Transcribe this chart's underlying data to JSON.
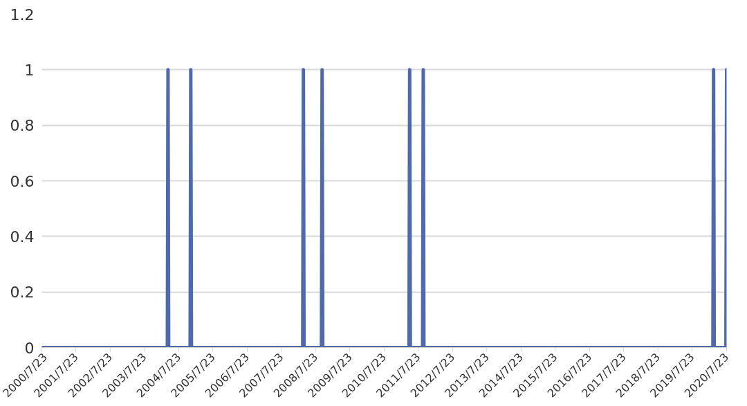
{
  "chart_data": {
    "type": "line",
    "x": [
      "2000-07-23",
      "2004-03-23",
      "2004-03-30",
      "2004-04-06",
      "2004-11-21",
      "2004-11-28",
      "2004-12-05",
      "2008-03-06",
      "2008-03-13",
      "2008-03-20",
      "2008-09-22",
      "2008-09-29",
      "2008-10-06",
      "2011-04-14",
      "2011-04-21",
      "2011-04-28",
      "2011-09-06",
      "2011-09-13",
      "2011-09-20",
      "2020-02-28",
      "2020-03-06",
      "2020-03-13",
      "2020-07-16",
      "2020-07-23"
    ],
    "series": [
      {
        "color": "#4e6aad",
        "values": [
          0,
          0,
          1,
          0,
          0,
          1,
          0,
          0,
          1,
          0,
          0,
          1,
          0,
          0,
          1,
          0,
          0,
          1,
          0,
          0,
          1,
          0,
          0,
          1
        ]
      }
    ],
    "xlim": [
      "2000-07-23",
      "2020-07-23"
    ],
    "xticks": [
      {
        "value": "2000-07-23",
        "label": "2000/7/23"
      },
      {
        "value": "2001-07-23",
        "label": "2001/7/23"
      },
      {
        "value": "2002-07-23",
        "label": "2002/7/23"
      },
      {
        "value": "2003-07-23",
        "label": "2003/7/23"
      },
      {
        "value": "2004-07-23",
        "label": "2004/7/23"
      },
      {
        "value": "2005-07-23",
        "label": "2005/7/23"
      },
      {
        "value": "2006-07-23",
        "label": "2006/7/23"
      },
      {
        "value": "2007-07-23",
        "label": "2007/7/23"
      },
      {
        "value": "2008-07-23",
        "label": "2008/7/23"
      },
      {
        "value": "2009-07-23",
        "label": "2009/7/23"
      },
      {
        "value": "2010-07-23",
        "label": "2010/7/23"
      },
      {
        "value": "2011-07-23",
        "label": "2011/7/23"
      },
      {
        "value": "2012-07-23",
        "label": "2012/7/23"
      },
      {
        "value": "2013-07-23",
        "label": "2013/7/23"
      },
      {
        "value": "2014-07-23",
        "label": "2014/7/23"
      },
      {
        "value": "2015-07-23",
        "label": "2015/7/23"
      },
      {
        "value": "2016-07-23",
        "label": "2016/7/23"
      },
      {
        "value": "2017-07-23",
        "label": "2017/7/23"
      },
      {
        "value": "2018-07-23",
        "label": "2018/7/23"
      },
      {
        "value": "2019-07-23",
        "label": "2019/7/23"
      },
      {
        "value": "2020-07-23",
        "label": "2020/7/23"
      }
    ],
    "ylim": [
      0,
      1.2
    ],
    "yticks": [
      0,
      0.2,
      0.4,
      0.6,
      0.8,
      1,
      1.2
    ],
    "grid": "y"
  }
}
